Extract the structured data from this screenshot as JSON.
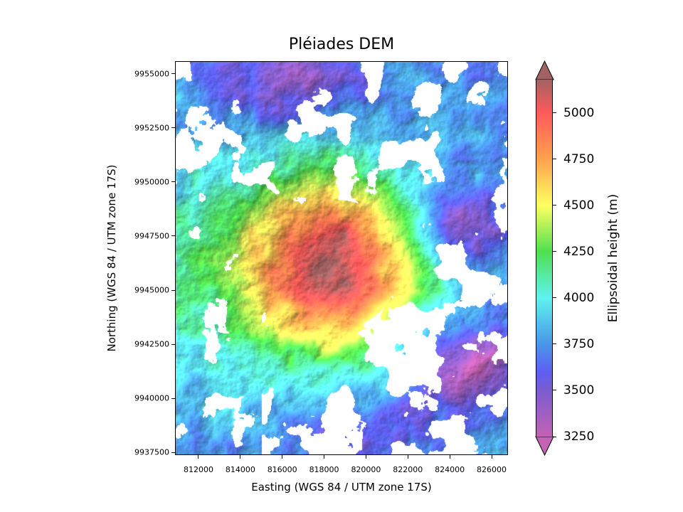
{
  "title": "Pléiades DEM",
  "chart_data": {
    "type": "heatmap",
    "title": "Pléiades DEM",
    "xlabel": "Easting (WGS 84 / UTM zone 17S)",
    "ylabel": "Northing (WGS 84 / UTM zone 17S)",
    "xlim": [
      810880,
      826780
    ],
    "ylim": [
      9937370,
      9955590
    ],
    "xticks": [
      "812000",
      "814000",
      "816000",
      "818000",
      "820000",
      "822000",
      "824000",
      "826000"
    ],
    "yticks": [
      "9955000",
      "9952500",
      "9950000",
      "9947500",
      "9945000",
      "9942500",
      "9940000",
      "9937500"
    ],
    "colorbar": {
      "label": "Ellipsoidal height (m)",
      "range": [
        3250,
        5180
      ],
      "extend": "both",
      "ticks": [
        "5000",
        "4750",
        "4500",
        "4250",
        "4000",
        "3750",
        "3500",
        "3250"
      ],
      "colors": [
        "#c462b4",
        "#7a5ccf",
        "#5d5ff2",
        "#4a96e8",
        "#5ff2f0",
        "#4fe04f",
        "#ffff62",
        "#ffa24e",
        "#ff5a5a",
        "#a26262"
      ]
    },
    "grid": false,
    "nodata_color": "#ffffff"
  }
}
